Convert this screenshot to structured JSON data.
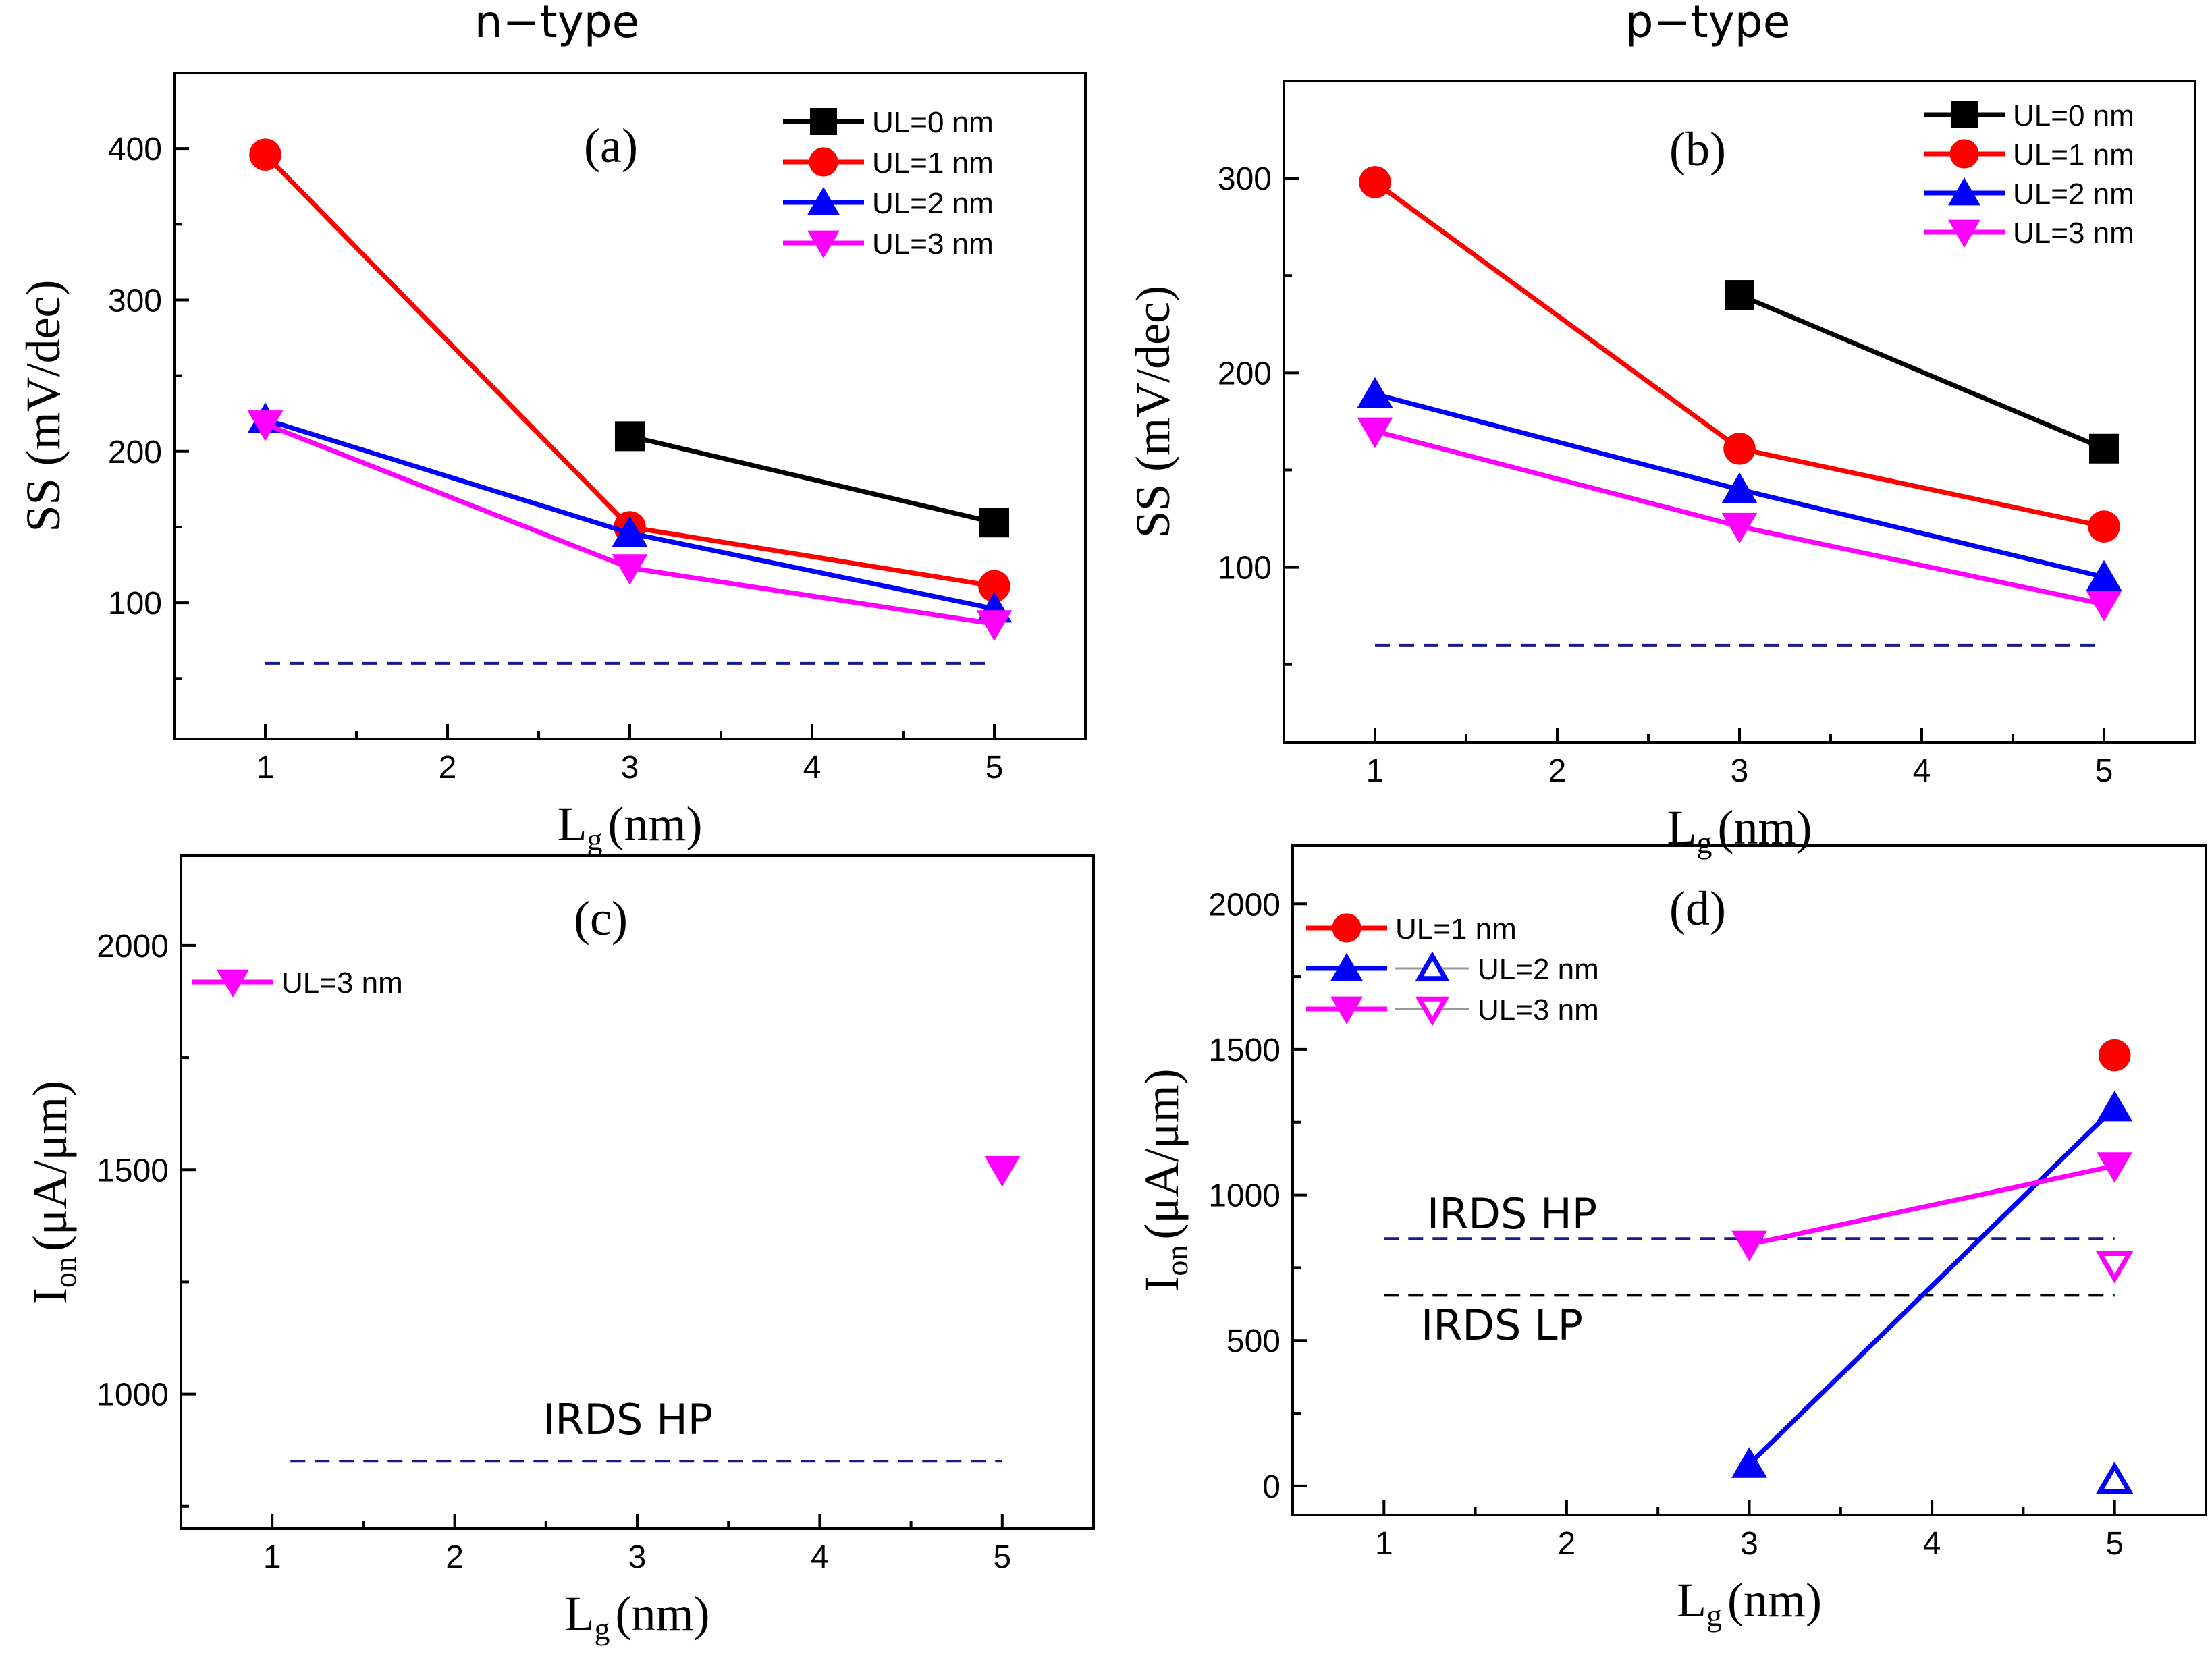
{
  "column_titles": {
    "left": "n−type",
    "right": "p−type"
  },
  "colors": {
    "black": "#000000",
    "red": "#ff0000",
    "blue": "#0000ff",
    "magenta": "#ff00ff",
    "navy_dash": "#1a1a8c",
    "black_dash": "#000000"
  },
  "chart_data": [
    {
      "id": "a",
      "type": "line",
      "panel_label": "(a)",
      "xlabel": "L_g (nm)",
      "ylabel": "SS (mV/dec)",
      "xlim": [
        0.5,
        5.5
      ],
      "ylim": [
        10,
        450
      ],
      "xticks": [
        1,
        2,
        3,
        4,
        5
      ],
      "yticks": [
        100,
        200,
        300,
        400
      ],
      "legend_position": "top-right",
      "series": [
        {
          "name": "UL=0 nm",
          "color": "black",
          "marker": "square",
          "x": [
            3,
            5
          ],
          "y": [
            210,
            153
          ]
        },
        {
          "name": "UL=1 nm",
          "color": "red",
          "marker": "circle",
          "x": [
            1,
            3,
            5
          ],
          "y": [
            396,
            150,
            111
          ]
        },
        {
          "name": "UL=2 nm",
          "color": "blue",
          "marker": "triangle-up",
          "x": [
            1,
            3,
            5
          ],
          "y": [
            221,
            146,
            96
          ]
        },
        {
          "name": "UL=3 nm",
          "color": "magenta",
          "marker": "triangle-down",
          "x": [
            1,
            3,
            5
          ],
          "y": [
            218,
            123,
            86
          ]
        }
      ],
      "reference_lines": [
        {
          "y": 60,
          "x": [
            1,
            5
          ],
          "color": "navy_dash",
          "label": ""
        }
      ]
    },
    {
      "id": "b",
      "type": "line",
      "panel_label": "(b)",
      "xlabel": "L_g (nm)",
      "ylabel": "SS (mV/dec)",
      "xlim": [
        0.5,
        5.5
      ],
      "ylim": [
        10,
        350
      ],
      "xticks": [
        1,
        2,
        3,
        4,
        5
      ],
      "yticks": [
        100,
        200,
        300
      ],
      "legend_position": "top-right",
      "series": [
        {
          "name": "UL=0 nm",
          "color": "black",
          "marker": "square",
          "x": [
            3,
            5
          ],
          "y": [
            240,
            161
          ]
        },
        {
          "name": "UL=1 nm",
          "color": "red",
          "marker": "circle",
          "x": [
            1,
            3,
            5
          ],
          "y": [
            298,
            161,
            121
          ]
        },
        {
          "name": "UL=2 nm",
          "color": "blue",
          "marker": "triangle-up",
          "x": [
            1,
            3,
            5
          ],
          "y": [
            189,
            140,
            95
          ]
        },
        {
          "name": "UL=3 nm",
          "color": "magenta",
          "marker": "triangle-down",
          "x": [
            1,
            3,
            5
          ],
          "y": [
            170,
            121,
            81
          ]
        }
      ],
      "reference_lines": [
        {
          "y": 60,
          "x": [
            1,
            5
          ],
          "color": "navy_dash",
          "label": ""
        }
      ]
    },
    {
      "id": "c",
      "type": "scatter",
      "panel_label": "(c)",
      "xlabel": "L_g (nm)",
      "ylabel": "I_on (μA/μm)",
      "xlim": [
        0.5,
        5.5
      ],
      "ylim": [
        700,
        2200
      ],
      "xticks": [
        1,
        2,
        3,
        4,
        5
      ],
      "yticks": [
        1000,
        1500,
        2000
      ],
      "legend_position": "top-left",
      "series": [
        {
          "name": "UL=3 nm",
          "color": "magenta",
          "marker": "triangle-down",
          "x": [
            5
          ],
          "y": [
            1500
          ]
        }
      ],
      "reference_lines": [
        {
          "y": 850,
          "x": [
            1.1,
            5
          ],
          "color": "navy_dash",
          "label": "IRDS HP"
        }
      ]
    },
    {
      "id": "d",
      "type": "line",
      "panel_label": "(d)",
      "xlabel": "L_g (nm)",
      "ylabel": "I_on (μA/μm)",
      "xlim": [
        0.5,
        5.5
      ],
      "ylim": [
        -100,
        2200
      ],
      "xticks": [
        1,
        2,
        3,
        4,
        5
      ],
      "yticks": [
        0,
        500,
        1000,
        1500,
        2000
      ],
      "legend_position": "top-left",
      "series": [
        {
          "name": "UL=1 nm",
          "color": "red",
          "marker": "circle",
          "x": [
            5
          ],
          "y": [
            1480
          ]
        },
        {
          "name": "UL=2 nm",
          "color": "blue",
          "marker": "triangle-up",
          "x": [
            3,
            5
          ],
          "y": [
            75,
            1300
          ],
          "open_x": [
            5
          ],
          "open_y": [
            20
          ]
        },
        {
          "name": "UL=3 nm",
          "color": "magenta",
          "marker": "triangle-down",
          "x": [
            3,
            5
          ],
          "y": [
            830,
            1100
          ],
          "open_x": [
            5
          ],
          "open_y": [
            760
          ]
        }
      ],
      "reference_lines": [
        {
          "y": 850,
          "x": [
            1,
            5
          ],
          "color": "navy_dash",
          "label": "IRDS HP"
        },
        {
          "y": 655,
          "x": [
            1,
            5
          ],
          "color": "black_dash",
          "label": "IRDS LP"
        }
      ]
    }
  ]
}
